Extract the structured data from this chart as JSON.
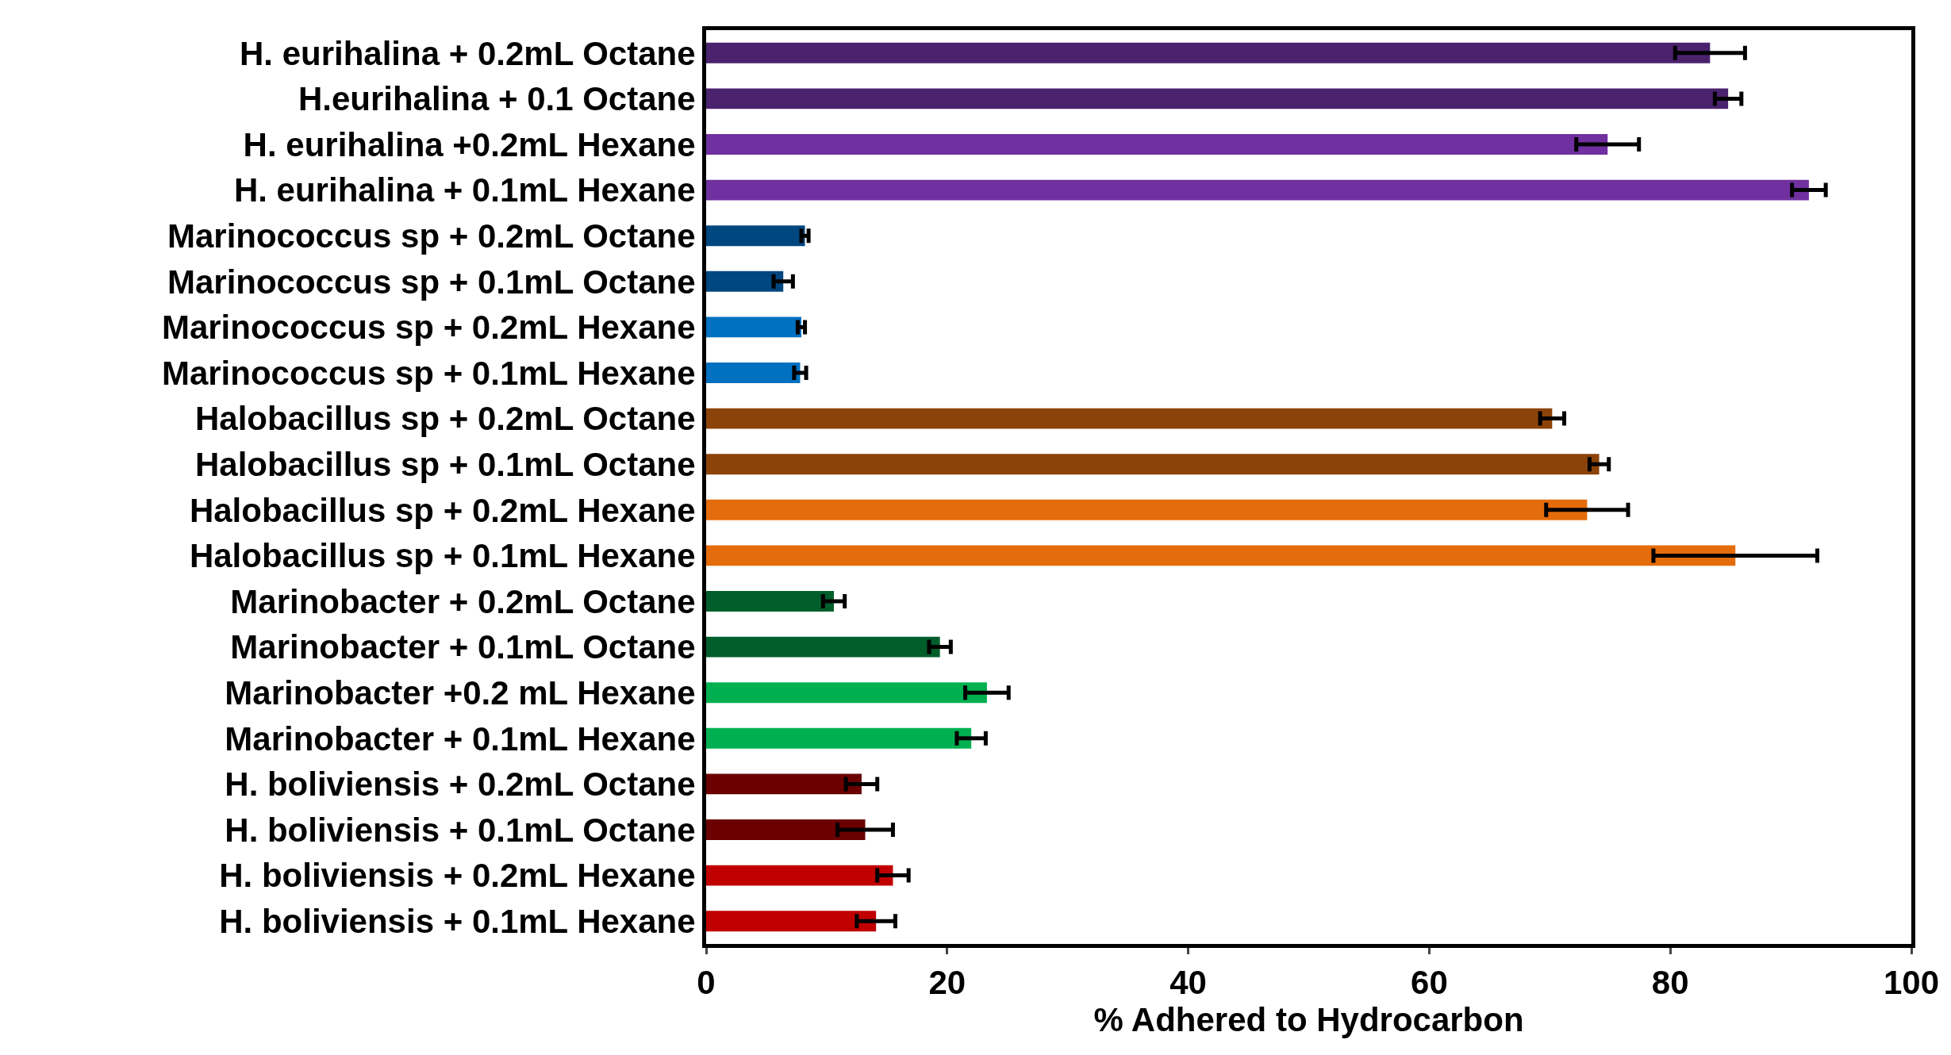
{
  "chart_data": {
    "type": "bar",
    "orientation": "horizontal",
    "xlabel": "% Adhered to Hydrocarbon",
    "categories": [
      "H. eurihalina + 0.2mL Octane",
      "H.eurihalina + 0.1 Octane",
      "H. eurihalina +0.2mL Hexane",
      "H. eurihalina + 0.1mL Hexane",
      "Marinococcus sp + 0.2mL Octane",
      "Marinococcus sp + 0.1mL Octane",
      "Marinococcus sp + 0.2mL Hexane",
      "Marinococcus sp + 0.1mL Hexane",
      "Halobacillus sp + 0.2mL Octane",
      "Halobacillus sp + 0.1mL Octane",
      "Halobacillus sp + 0.2mL Hexane",
      "Halobacillus sp + 0.1mL Hexane",
      "Marinobacter + 0.2mL Octane",
      "Marinobacter + 0.1mL Octane",
      "Marinobacter +0.2 mL Hexane",
      "Marinobacter + 0.1mL Hexane",
      "H. boliviensis + 0.2mL Octane",
      "H. boliviensis + 0.1mL Octane",
      "H. boliviensis + 0.2mL Hexane",
      "H. boliviensis + 0.1mL Hexane"
    ],
    "values": [
      83.3,
      84.8,
      74.8,
      91.5,
      8.2,
      6.4,
      7.9,
      7.8,
      70.2,
      74.1,
      73.1,
      85.4,
      10.6,
      19.4,
      23.3,
      22.0,
      12.9,
      13.2,
      15.5,
      14.1
    ],
    "errors": [
      2.9,
      1.1,
      2.6,
      1.4,
      0.3,
      0.8,
      0.3,
      0.5,
      1.0,
      0.8,
      3.4,
      6.8,
      0.9,
      0.9,
      1.8,
      1.2,
      1.3,
      2.3,
      1.3,
      1.6
    ],
    "colors": [
      "#4b226e",
      "#4b226e",
      "#7030a0",
      "#7030a0",
      "#00467f",
      "#00467f",
      "#0070c0",
      "#0070c0",
      "#8b4309",
      "#8b4309",
      "#e46c0a",
      "#e46c0a",
      "#005e2b",
      "#005e2b",
      "#00b050",
      "#00b050",
      "#6a0000",
      "#6a0000",
      "#c00000",
      "#c00000"
    ],
    "xlim": [
      0,
      100
    ],
    "xticks": [
      0,
      20,
      40,
      60,
      80,
      100
    ]
  }
}
